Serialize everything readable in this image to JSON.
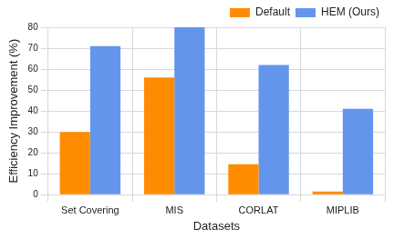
{
  "chart_data": {
    "type": "bar",
    "x_label": "Datasets",
    "y_label": "Efficiency Improvement (%)",
    "categories": [
      "Set Covering",
      "MIS",
      "CORLAT",
      "MIPLIB"
    ],
    "series": [
      {
        "name": "Default",
        "color": "#ff8c00",
        "values": [
          30,
          56,
          14.5,
          1.5
        ]
      },
      {
        "name": "HEM (Ours)",
        "color": "#6495ed",
        "values": [
          71,
          80,
          62,
          41
        ]
      }
    ],
    "ylim": [
      0,
      80
    ],
    "yticks": [
      0,
      10,
      20,
      30,
      40,
      50,
      60,
      70,
      80
    ],
    "grid": true,
    "legend": "upper right"
  }
}
